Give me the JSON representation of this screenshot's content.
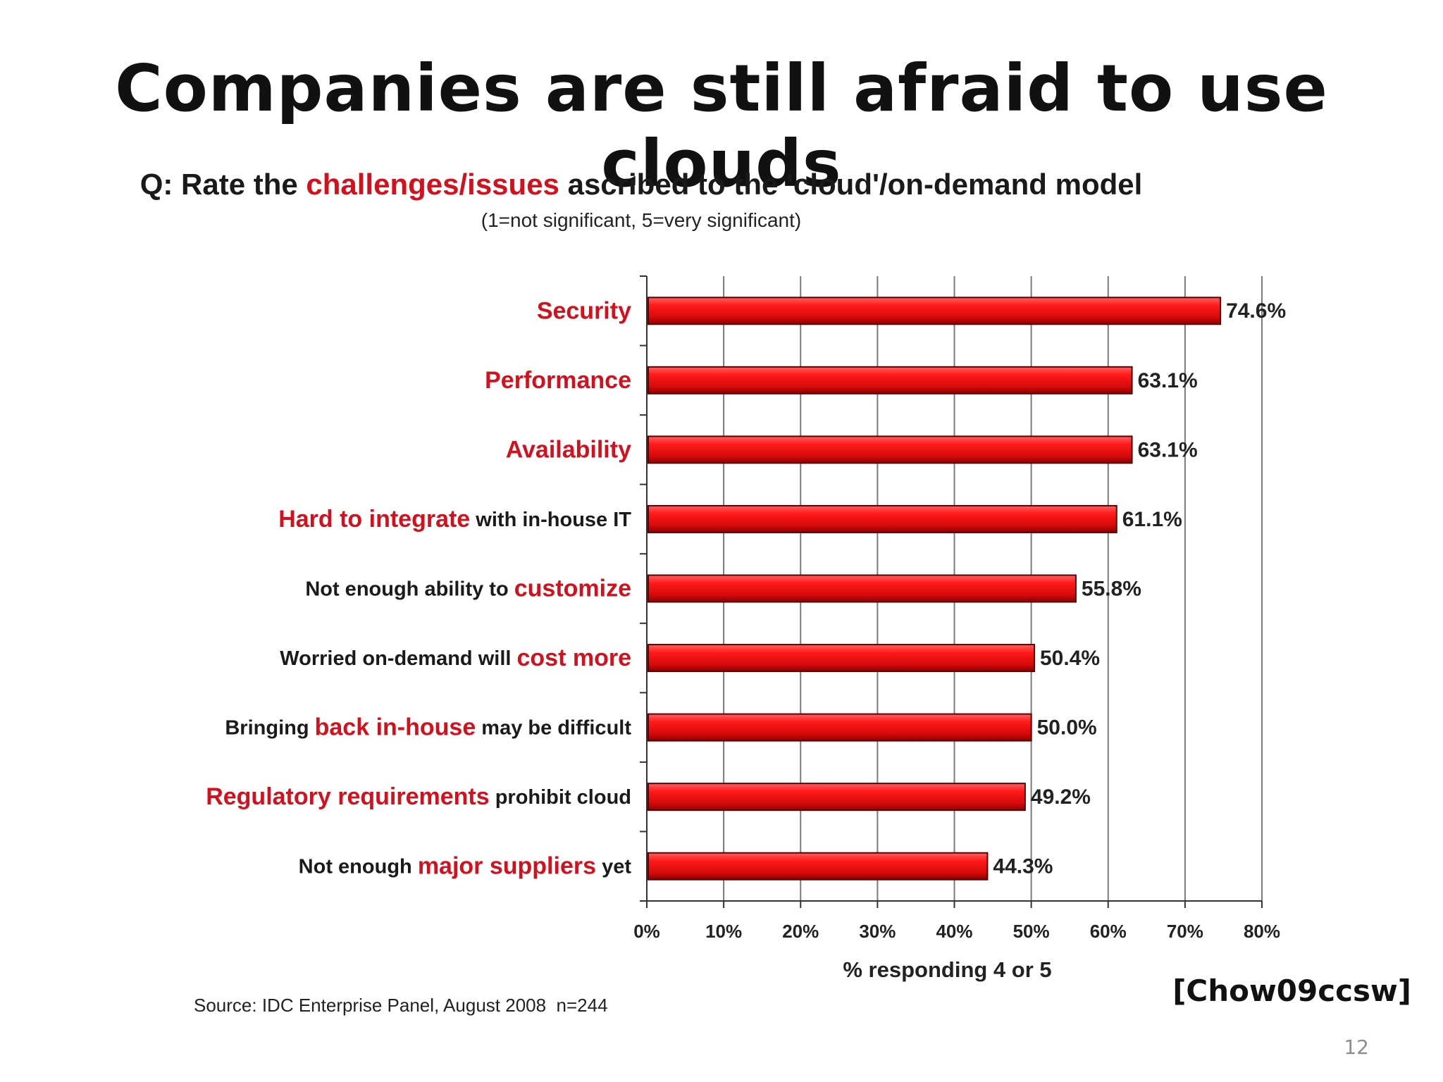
{
  "slide": {
    "title": "Companies are still afraid to use clouds",
    "citation": "[Chow09ccsw]",
    "page_number": "12"
  },
  "question": {
    "prefix": "Q: Rate the ",
    "highlight": "challenges/issues",
    "suffix": " ascribed to the 'cloud'/on-demand model",
    "scale": "(1=not significant, 5=very significant)"
  },
  "source": "Source: IDC Enterprise Panel, August 2008  n=244",
  "colors": {
    "accent_red": "#d4101c",
    "bar_fill": "#e8141c",
    "bar_edge": "#5a0000",
    "text": "#1a1a1a"
  },
  "chart_data": {
    "type": "bar",
    "orientation": "horizontal",
    "categories": [
      "Security",
      "Performance",
      "Availability",
      "Hard to integrate with in-house IT",
      "Not enough ability to customize",
      "Worried on-demand will cost more",
      "Bringing back in-house may be difficult",
      "Regulatory requirements prohibit cloud",
      "Not enough major suppliers yet"
    ],
    "category_parts": [
      [
        {
          "text": "Security",
          "red": true
        }
      ],
      [
        {
          "text": "Performance",
          "red": true
        }
      ],
      [
        {
          "text": "Availability",
          "red": true
        }
      ],
      [
        {
          "text": "Hard to integrate",
          "red": true
        },
        {
          "text": " with in-house IT",
          "red": false
        }
      ],
      [
        {
          "text": "Not enough ability to ",
          "red": false
        },
        {
          "text": "customize",
          "red": true
        }
      ],
      [
        {
          "text": "Worried on-demand will ",
          "red": false
        },
        {
          "text": "cost more",
          "red": true
        }
      ],
      [
        {
          "text": "Bringing ",
          "red": false
        },
        {
          "text": "back in-house",
          "red": true
        },
        {
          "text": " may be difficult",
          "red": false
        }
      ],
      [
        {
          "text": "Regulatory requirements",
          "red": true
        },
        {
          "text": " prohibit cloud",
          "red": false
        }
      ],
      [
        {
          "text": "Not enough ",
          "red": false
        },
        {
          "text": "major suppliers",
          "red": true
        },
        {
          "text": " yet",
          "red": false
        }
      ]
    ],
    "values": [
      74.6,
      63.1,
      63.1,
      61.1,
      55.8,
      50.4,
      50.0,
      49.2,
      44.3
    ],
    "value_labels": [
      "74.6%",
      "63.1%",
      "63.1%",
      "61.1%",
      "55.8%",
      "50.4%",
      "50.0%",
      "49.2%",
      "44.3%"
    ],
    "xlim": [
      0,
      80
    ],
    "x_ticks": [
      0,
      10,
      20,
      30,
      40,
      50,
      60,
      70,
      80
    ],
    "x_tick_labels": [
      "0%",
      "10%",
      "20%",
      "30%",
      "40%",
      "50%",
      "60%",
      "70%",
      "80%"
    ],
    "xlabel": "% responding 4 or 5",
    "grid": true
  }
}
